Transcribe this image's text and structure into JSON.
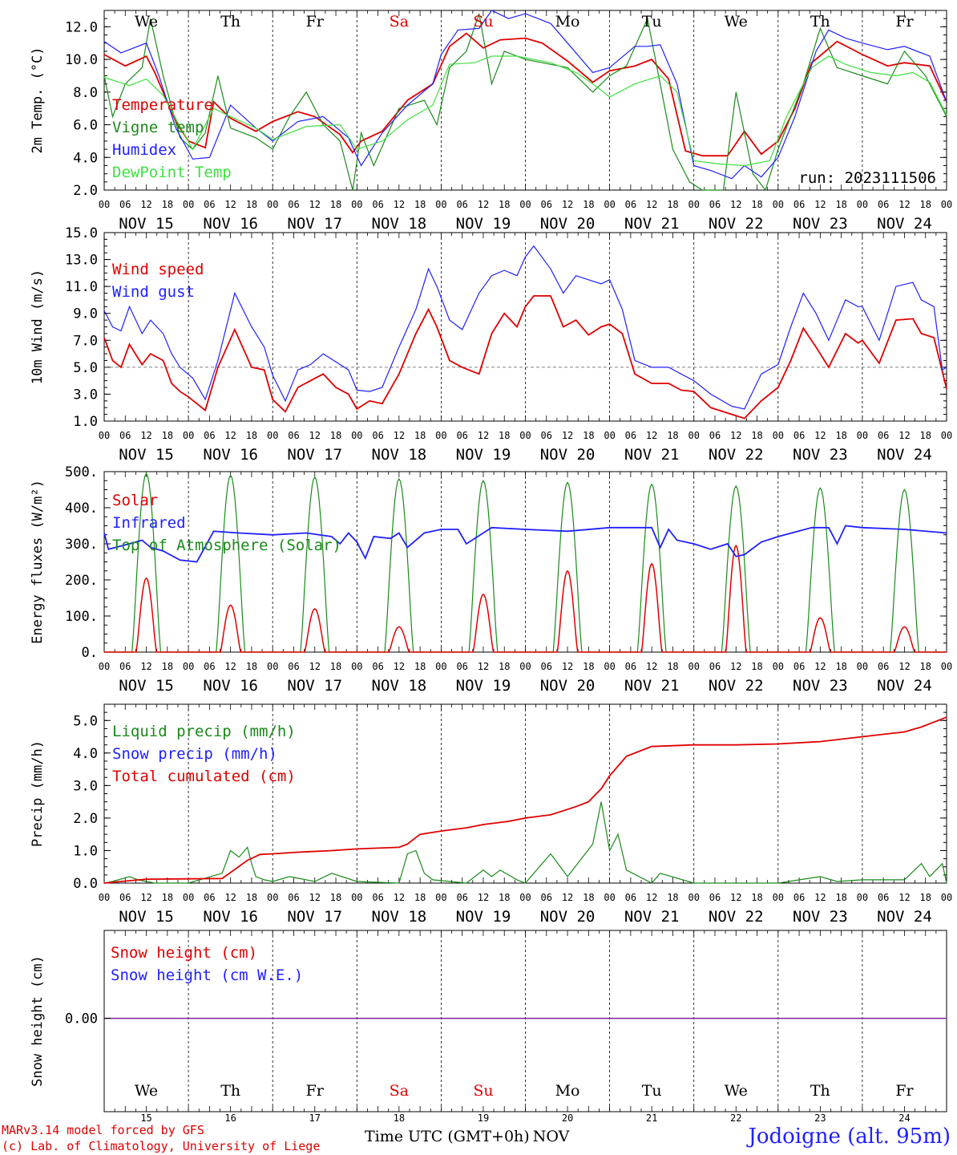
{
  "run_label": "run: 2023111506",
  "footer": {
    "model": "MARv3.14 model forced by GFS",
    "lab": "(c) Lab. of Climatology, University of Liege",
    "station": "Jodoigne (alt. 95m)",
    "xtitle": "Time UTC (GMT+0h)",
    "xtitle_month": "NOV"
  },
  "days": {
    "weekday_labels": [
      "We",
      "Th",
      "Fr",
      "Sa",
      "Su",
      "Mo",
      "Tu",
      "We",
      "Th",
      "Fr"
    ],
    "weekend_color": "#e00000",
    "weekday_color": "#000000",
    "weekend_index": [
      3,
      4
    ],
    "date_labels": [
      "NOV 15",
      "NOV 16",
      "NOV 17",
      "NOV 18",
      "NOV 19",
      "NOV 20",
      "NOV 21",
      "NOV 22",
      "NOV 23",
      "NOV 24"
    ],
    "day_numbers": [
      "15",
      "16",
      "17",
      "18",
      "19",
      "20",
      "21",
      "22",
      "23",
      "24"
    ],
    "hour_ticks": [
      "00",
      "06",
      "12",
      "18"
    ],
    "last_tick": "00"
  },
  "chart_data": [
    {
      "type": "line",
      "ylabel": "2m Temp. (°C)",
      "ylim": [
        2.0,
        13.0
      ],
      "yticks": [
        "2.0",
        "4.0",
        "6.0",
        "8.0",
        "10.0",
        "12.0"
      ],
      "x_unit": "days since Nov 15 00 UTC",
      "series": [
        {
          "name": "Temperature",
          "color": "#e00000",
          "x": [
            0,
            0.25,
            0.5,
            0.6,
            0.85,
            1.0,
            1.2,
            1.3,
            1.5,
            1.8,
            2.0,
            2.3,
            2.5,
            2.8,
            2.95,
            3.05,
            3.3,
            3.6,
            3.9,
            4.1,
            4.3,
            4.5,
            4.7,
            5.0,
            5.2,
            5.5,
            5.8,
            6.0,
            6.3,
            6.5,
            6.7,
            6.9,
            7.1,
            7.4,
            7.6,
            7.8,
            8.0,
            8.2,
            8.4,
            8.7,
            9.0,
            9.3,
            9.5,
            9.8,
            10.0
          ],
          "y": [
            10.3,
            9.6,
            10.2,
            9.2,
            6.2,
            5.0,
            4.6,
            7.4,
            6.4,
            5.6,
            6.2,
            6.8,
            6.5,
            5.4,
            4.3,
            5.0,
            5.6,
            7.5,
            8.5,
            10.8,
            11.6,
            10.7,
            11.2,
            11.3,
            11.0,
            9.9,
            8.6,
            9.3,
            9.6,
            10.0,
            8.8,
            4.4,
            4.1,
            4.1,
            5.6,
            4.2,
            5.0,
            7.0,
            9.8,
            11.1,
            10.3,
            9.6,
            9.8,
            9.6,
            7.4
          ]
        },
        {
          "name": "Vigne temp",
          "color": "#1a8a1a",
          "x": [
            0,
            0.1,
            0.25,
            0.45,
            0.55,
            0.7,
            0.9,
            1.05,
            1.2,
            1.35,
            1.5,
            1.8,
            2.0,
            2.2,
            2.4,
            2.6,
            2.8,
            2.95,
            3.05,
            3.2,
            3.5,
            3.8,
            3.95,
            4.1,
            4.3,
            4.45,
            4.6,
            4.75,
            5.0,
            5.2,
            5.5,
            5.8,
            6.0,
            6.2,
            6.45,
            6.6,
            6.75,
            6.95,
            7.1,
            7.35,
            7.5,
            7.7,
            7.85,
            8.0,
            8.3,
            8.5,
            8.7,
            9.0,
            9.3,
            9.5,
            9.75,
            10.0
          ],
          "y": [
            9.0,
            6.5,
            8.5,
            9.5,
            12.5,
            9.0,
            5.2,
            4.5,
            5.5,
            9.0,
            5.8,
            5.2,
            4.5,
            6.5,
            8.0,
            6.0,
            5.0,
            2.0,
            5.5,
            3.5,
            7.0,
            7.5,
            6.0,
            9.5,
            10.5,
            12.8,
            8.5,
            10.5,
            10.0,
            9.8,
            9.5,
            8.0,
            9.0,
            9.6,
            12.5,
            8.5,
            4.5,
            2.5,
            2.0,
            2.0,
            8.0,
            3.0,
            2.0,
            4.5,
            8.5,
            11.9,
            9.5,
            9.0,
            8.5,
            10.5,
            9.0,
            6.5
          ]
        },
        {
          "name": "Humidex",
          "color": "#2020ff",
          "x": [
            0,
            0.2,
            0.5,
            0.65,
            0.85,
            1.05,
            1.25,
            1.5,
            1.8,
            2.0,
            2.3,
            2.6,
            2.9,
            3.05,
            3.3,
            3.6,
            3.9,
            4.0,
            4.2,
            4.45,
            4.6,
            4.8,
            5.0,
            5.3,
            5.5,
            5.8,
            6.0,
            6.3,
            6.45,
            6.6,
            6.8,
            7.0,
            7.2,
            7.45,
            7.6,
            7.8,
            8.0,
            8.2,
            8.45,
            8.6,
            8.8,
            9.0,
            9.3,
            9.5,
            9.8,
            10.0
          ],
          "y": [
            11.1,
            10.4,
            11.0,
            9.0,
            5.8,
            3.9,
            4.0,
            7.2,
            5.8,
            5.0,
            6.2,
            6.5,
            5.2,
            3.5,
            5.5,
            7.2,
            8.5,
            10.3,
            11.8,
            11.9,
            13.0,
            12.5,
            12.8,
            12.2,
            11.0,
            9.2,
            9.5,
            10.8,
            10.8,
            10.9,
            8.5,
            3.5,
            3.2,
            2.7,
            3.5,
            2.8,
            4.0,
            6.5,
            10.5,
            11.8,
            11.3,
            11.0,
            10.6,
            10.8,
            10.2,
            7.4
          ]
        },
        {
          "name": "DewPoint Temp",
          "color": "#40e040",
          "x": [
            0,
            0.3,
            0.5,
            0.7,
            0.9,
            1.05,
            1.3,
            1.5,
            1.8,
            2.0,
            2.4,
            2.8,
            3.0,
            3.3,
            3.6,
            3.9,
            4.1,
            4.4,
            4.6,
            4.9,
            5.0,
            5.3,
            5.6,
            5.8,
            6.0,
            6.3,
            6.6,
            6.8,
            7.0,
            7.3,
            7.6,
            7.9,
            8.1,
            8.4,
            8.6,
            8.8,
            9.1,
            9.4,
            9.6,
            9.8,
            10.0
          ],
          "y": [
            8.9,
            8.4,
            8.8,
            7.8,
            5.9,
            4.5,
            7.0,
            6.5,
            5.8,
            5.1,
            5.9,
            6.0,
            4.5,
            5.0,
            6.3,
            7.2,
            9.7,
            9.8,
            10.2,
            10.2,
            10.1,
            9.8,
            9.2,
            8.5,
            7.7,
            8.5,
            9.0,
            8.0,
            3.8,
            3.6,
            3.5,
            3.8,
            6.5,
            9.5,
            10.2,
            9.7,
            9.2,
            9.0,
            9.2,
            8.6,
            6.6
          ]
        }
      ]
    },
    {
      "type": "line",
      "ylabel": "10m Wind (m/s)",
      "ylim": [
        1.0,
        15.0
      ],
      "yticks": [
        "1.0",
        "3.0",
        "5.0",
        "7.0",
        "9.0",
        "11.0",
        "13.0",
        "15.0"
      ],
      "ref_line": 5.0,
      "x_unit": "days since Nov 15 00 UTC",
      "series": [
        {
          "name": "Wind speed",
          "color": "#e00000",
          "x": [
            0,
            0.1,
            0.2,
            0.3,
            0.45,
            0.55,
            0.7,
            0.8,
            0.9,
            1.0,
            1.2,
            1.35,
            1.55,
            1.75,
            1.9,
            2.0,
            2.15,
            2.3,
            2.45,
            2.6,
            2.75,
            2.9,
            3.0,
            3.15,
            3.3,
            3.5,
            3.7,
            3.85,
            3.95,
            4.1,
            4.25,
            4.45,
            4.6,
            4.75,
            4.9,
            5.0,
            5.1,
            5.3,
            5.45,
            5.6,
            5.75,
            5.9,
            6.0,
            6.15,
            6.3,
            6.5,
            6.7,
            6.85,
            7.0,
            7.2,
            7.45,
            7.6,
            7.8,
            8.0,
            8.15,
            8.3,
            8.45,
            8.6,
            8.8,
            8.95,
            9.0,
            9.2,
            9.4,
            9.6,
            9.7,
            9.85,
            10.0
          ],
          "y": [
            7.2,
            5.5,
            5.0,
            6.7,
            5.2,
            6.0,
            5.5,
            3.8,
            3.2,
            2.8,
            1.8,
            5.0,
            7.8,
            5.0,
            4.8,
            2.6,
            1.7,
            3.5,
            4.0,
            4.5,
            3.5,
            3.0,
            1.9,
            2.5,
            2.3,
            4.5,
            7.5,
            9.3,
            8.0,
            5.5,
            5.0,
            4.5,
            7.5,
            9.0,
            8.0,
            9.5,
            10.3,
            10.3,
            8.0,
            8.5,
            7.4,
            8.0,
            8.2,
            7.5,
            4.5,
            3.8,
            3.8,
            3.3,
            3.2,
            2.0,
            1.5,
            1.2,
            2.5,
            3.5,
            5.5,
            7.9,
            6.5,
            5.0,
            7.5,
            6.8,
            7.0,
            5.3,
            8.5,
            8.6,
            7.5,
            7.2,
            3.4
          ]
        },
        {
          "name": "Wind gust",
          "color": "#2020ff",
          "x": [
            0,
            0.1,
            0.2,
            0.3,
            0.45,
            0.55,
            0.7,
            0.8,
            0.9,
            1.05,
            1.2,
            1.35,
            1.55,
            1.75,
            1.9,
            2.0,
            2.15,
            2.3,
            2.45,
            2.6,
            2.75,
            2.9,
            3.0,
            3.15,
            3.3,
            3.5,
            3.7,
            3.85,
            3.95,
            4.1,
            4.25,
            4.45,
            4.6,
            4.75,
            4.9,
            5.0,
            5.1,
            5.3,
            5.45,
            5.6,
            5.75,
            5.9,
            6.0,
            6.15,
            6.3,
            6.5,
            6.7,
            6.85,
            7.0,
            7.2,
            7.45,
            7.6,
            7.8,
            8.0,
            8.15,
            8.3,
            8.45,
            8.6,
            8.8,
            8.95,
            9.0,
            9.2,
            9.4,
            9.6,
            9.7,
            9.85,
            9.95,
            10.0
          ],
          "y": [
            9.2,
            8.0,
            7.7,
            9.5,
            7.5,
            8.5,
            7.5,
            6.0,
            5.0,
            4.2,
            2.6,
            5.5,
            10.5,
            8.0,
            6.5,
            4.4,
            2.5,
            4.8,
            5.2,
            6.0,
            5.4,
            4.8,
            3.3,
            3.2,
            3.5,
            6.5,
            9.3,
            12.3,
            11.0,
            8.5,
            7.8,
            10.5,
            11.8,
            12.2,
            11.8,
            13.2,
            14.0,
            12.3,
            10.5,
            11.8,
            11.5,
            11.2,
            11.5,
            9.3,
            5.5,
            5.0,
            5.0,
            4.5,
            4.0,
            3.0,
            2.1,
            1.9,
            4.5,
            5.2,
            8.0,
            10.5,
            9.0,
            7.0,
            10.0,
            9.5,
            9.5,
            7.0,
            11.0,
            11.3,
            10.0,
            9.5,
            4.8,
            5.0
          ]
        }
      ]
    },
    {
      "type": "line",
      "ylabel": "Energy fluxes (W/m²)",
      "ylim": [
        0,
        500
      ],
      "yticks": [
        "0.",
        "100.",
        "200.",
        "300.",
        "400.",
        "500."
      ],
      "x_unit": "days since Nov 15 00 UTC",
      "daily_peaks": {
        "solar": [
          205,
          130,
          120,
          70,
          160,
          225,
          245,
          295,
          95,
          70
        ],
        "toa": [
          495,
          490,
          485,
          480,
          475,
          470,
          465,
          460,
          455,
          450
        ]
      },
      "series": [
        {
          "name": "Solar",
          "color": "#e00000"
        },
        {
          "name": "Infrared",
          "color": "#2020ff",
          "x": [
            0,
            0.05,
            0.3,
            0.45,
            0.55,
            0.7,
            0.9,
            1.1,
            1.3,
            1.6,
            2.0,
            2.4,
            2.7,
            2.8,
            2.9,
            3.0,
            3.1,
            3.2,
            3.4,
            3.5,
            3.6,
            3.8,
            4.0,
            4.2,
            4.3,
            4.6,
            5.0,
            5.5,
            6.0,
            6.5,
            6.6,
            6.7,
            6.8,
            7.0,
            7.2,
            7.4,
            7.5,
            7.6,
            7.8,
            8.0,
            8.4,
            8.6,
            8.7,
            8.8,
            9.0,
            9.5,
            10.0
          ],
          "y": [
            330,
            285,
            300,
            310,
            290,
            280,
            255,
            250,
            335,
            330,
            325,
            330,
            320,
            300,
            330,
            305,
            260,
            320,
            315,
            330,
            290,
            330,
            340,
            340,
            300,
            345,
            340,
            335,
            345,
            345,
            290,
            340,
            310,
            300,
            285,
            300,
            265,
            270,
            305,
            320,
            345,
            345,
            300,
            350,
            345,
            340,
            330
          ]
        },
        {
          "name": "Top of Atmosphere (Solar)",
          "color": "#1a8a1a"
        }
      ]
    },
    {
      "type": "line",
      "ylabel": "Precip (mm/h)",
      "ylim": [
        0.0,
        5.5
      ],
      "yticks": [
        "0.0",
        "1.0",
        "2.0",
        "3.0",
        "4.0",
        "5.0"
      ],
      "x_unit": "days since Nov 15 00 UTC",
      "series": [
        {
          "name": "Liquid precip (mm/h)",
          "color": "#1a8a1a",
          "x": [
            0,
            0.1,
            0.3,
            0.4,
            0.6,
            1.0,
            1.4,
            1.5,
            1.6,
            1.7,
            1.75,
            1.8,
            1.9,
            2.0,
            2.2,
            2.5,
            2.7,
            3.0,
            3.5,
            3.6,
            3.7,
            3.8,
            3.9,
            4.3,
            4.5,
            4.6,
            4.7,
            4.9,
            5.0,
            5.3,
            5.5,
            5.8,
            5.9,
            6.0,
            6.1,
            6.2,
            6.5,
            6.6,
            7.0,
            8.0,
            8.5,
            8.7,
            9.0,
            9.5,
            9.7,
            9.8,
            9.95,
            10.0
          ],
          "y": [
            0.0,
            0.05,
            0.2,
            0.1,
            0.0,
            0.0,
            0.3,
            1.0,
            0.8,
            1.1,
            0.6,
            0.2,
            0.1,
            0.05,
            0.2,
            0.05,
            0.3,
            0.05,
            0.0,
            0.9,
            1.0,
            0.3,
            0.1,
            0.0,
            0.4,
            0.2,
            0.4,
            0.1,
            0.0,
            0.9,
            0.2,
            1.2,
            2.5,
            1.0,
            1.5,
            0.4,
            0.0,
            0.3,
            0.0,
            0.0,
            0.2,
            0.05,
            0.1,
            0.1,
            0.6,
            0.2,
            0.6,
            0.0
          ]
        },
        {
          "name": "Snow precip (mm/h)",
          "color": "#2020ff"
        },
        {
          "name": "Total cumulated (cm)",
          "color": "#e00000",
          "x": [
            0,
            0.2,
            0.5,
            1.0,
            1.4,
            1.7,
            1.85,
            2.0,
            2.3,
            2.7,
            3.0,
            3.5,
            3.6,
            3.75,
            4.0,
            4.3,
            4.5,
            4.8,
            5.0,
            5.3,
            5.6,
            5.75,
            5.9,
            6.0,
            6.2,
            6.5,
            7.0,
            7.5,
            8.0,
            8.5,
            9.0,
            9.5,
            9.7,
            9.85,
            10.0
          ],
          "y": [
            0.0,
            0.05,
            0.12,
            0.13,
            0.14,
            0.7,
            0.88,
            0.9,
            0.95,
            1.0,
            1.05,
            1.1,
            1.2,
            1.5,
            1.6,
            1.7,
            1.8,
            1.9,
            2.0,
            2.1,
            2.35,
            2.5,
            2.9,
            3.3,
            3.9,
            4.2,
            4.25,
            4.25,
            4.28,
            4.35,
            4.5,
            4.65,
            4.8,
            4.95,
            5.1
          ]
        }
      ]
    },
    {
      "type": "line",
      "ylabel": "Snow height (cm)",
      "yticks": [
        "0.00"
      ],
      "series": [
        {
          "name": "Snow height (cm)",
          "color": "#e00000"
        },
        {
          "name": "Snow height (cm W.E.)",
          "color": "#2020ff"
        }
      ]
    }
  ]
}
